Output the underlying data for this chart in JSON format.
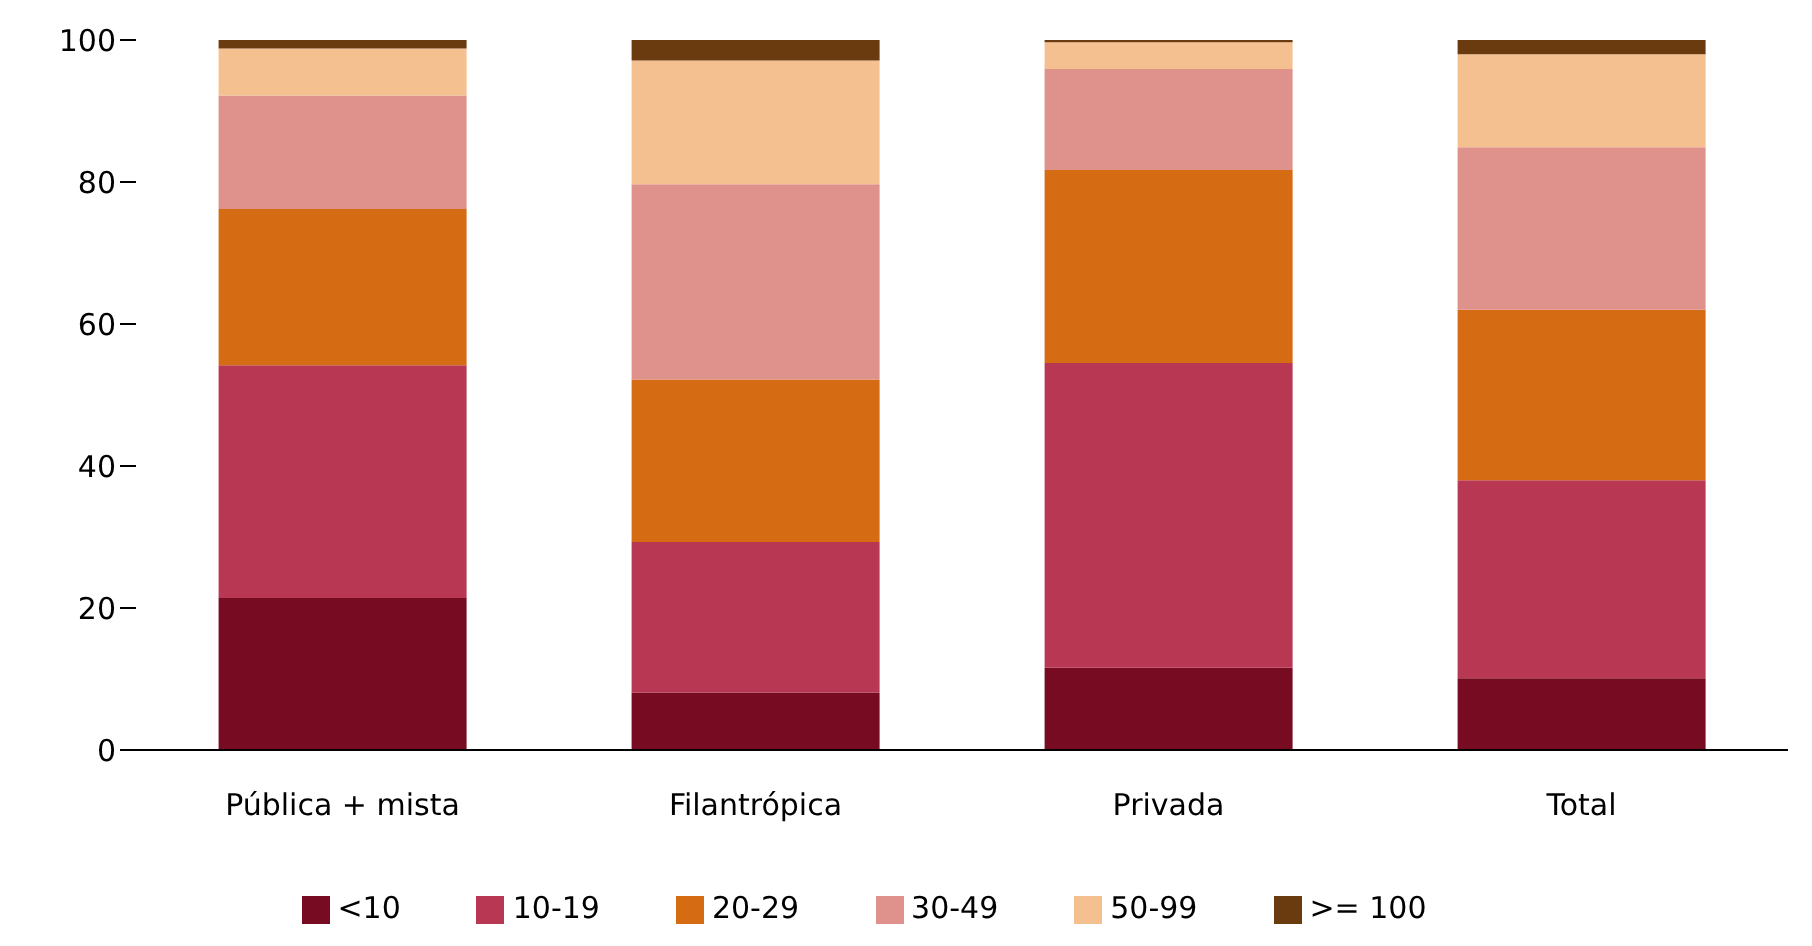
{
  "chart_data": {
    "type": "bar",
    "stacked": true,
    "categories": [
      "Pública + mista",
      "Filantrópica",
      "Privada",
      "Total"
    ],
    "series": [
      {
        "name": "<10",
        "color": "#760b22",
        "values": [
          21.4,
          8.1,
          11.6,
          10.1
        ]
      },
      {
        "name": "10-19",
        "color": "#b83752",
        "values": [
          32.8,
          21.2,
          42.9,
          27.9
        ]
      },
      {
        "name": "20-29",
        "color": "#d56b13",
        "values": [
          22.0,
          22.9,
          27.2,
          24.0
        ]
      },
      {
        "name": "30-49",
        "color": "#df918c",
        "values": [
          16.0,
          27.5,
          14.2,
          22.9
        ]
      },
      {
        "name": "50-99",
        "color": "#f5c08f",
        "values": [
          6.6,
          17.4,
          3.8,
          13.1
        ]
      },
      {
        "name": ">= 100",
        "color": "#6b3b10",
        "values": [
          1.2,
          2.9,
          0.3,
          2.0
        ]
      }
    ],
    "ylim": [
      0,
      100
    ],
    "yticks": [
      0,
      20,
      40,
      60,
      80,
      100
    ],
    "grid": false,
    "legend": "bottom"
  }
}
